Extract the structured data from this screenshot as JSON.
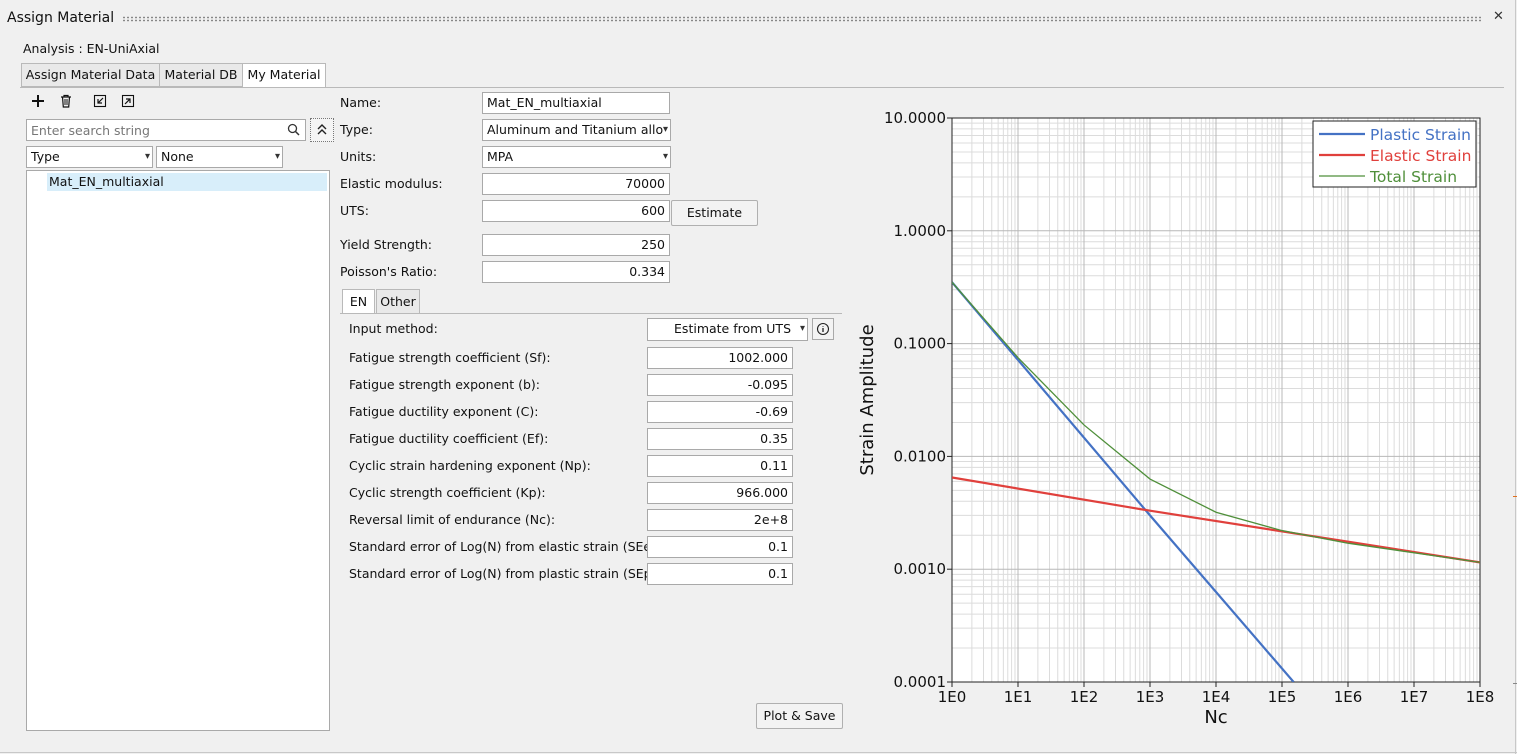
{
  "window": {
    "title": "Assign Material",
    "close_glyph": "✕"
  },
  "analysis_label": "Analysis : EN-UniAxial",
  "tabs": [
    {
      "label": "Assign Material Data",
      "active": false
    },
    {
      "label": "Material DB",
      "active": false
    },
    {
      "label": "My Material",
      "active": true
    }
  ],
  "toolbar": {
    "add_icon": "plus-icon",
    "delete_icon": "trash-icon",
    "import_icon": "import-icon",
    "export_icon": "export-icon"
  },
  "search": {
    "placeholder": "Enter search string",
    "icon": "search-icon",
    "collapse_icon": "double-chevron-up-icon"
  },
  "filters": {
    "type": "Type",
    "value": "None"
  },
  "material_list": [
    "Mat_EN_multiaxial"
  ],
  "properties": {
    "name": {
      "label": "Name:",
      "value": "Mat_EN_multiaxial"
    },
    "type": {
      "label": "Type:",
      "value": "Aluminum and Titanium allo"
    },
    "units": {
      "label": "Units:",
      "value": "MPA"
    },
    "elastic_modulus": {
      "label": "Elastic modulus:",
      "value": "70000"
    },
    "uts": {
      "label": "UTS:",
      "value": "600"
    },
    "estimate_button": "Estimate",
    "yield_strength": {
      "label": "Yield Strength:",
      "value": "250"
    },
    "poisson": {
      "label": "Poisson's Ratio:",
      "value": "0.334"
    }
  },
  "sub_tabs": [
    {
      "label": "EN",
      "active": true
    },
    {
      "label": "Other",
      "active": false
    }
  ],
  "en_params": {
    "input_method": {
      "label": "Input method:",
      "value": "Estimate from UTS",
      "info_icon": "info-icon"
    },
    "rows": [
      {
        "label": "Fatigue strength coefficient (Sf):",
        "value": "1002.000"
      },
      {
        "label": "Fatigue strength exponent (b):",
        "value": "-0.095"
      },
      {
        "label": "Fatigue ductility exponent (C):",
        "value": "-0.69"
      },
      {
        "label": "Fatigue ductility coefficient (Ef):",
        "value": "0.35"
      },
      {
        "label": "Cyclic strain hardening exponent (Np):",
        "value": "0.11"
      },
      {
        "label": "Cyclic strength coefficient (Kp):",
        "value": "966.000"
      },
      {
        "label": "Reversal limit of endurance (Nc):",
        "value": "2e+8"
      },
      {
        "label": "Standard error of Log(N) from elastic strain (SEe):",
        "value": "0.1"
      },
      {
        "label": "Standard error of Log(N) from plastic strain (SEp):",
        "value": "0.1"
      }
    ]
  },
  "plot_button": "Plot & Save",
  "chart_data": {
    "type": "line",
    "xlabel": "Nc",
    "ylabel": "Strain Amplitude",
    "xscale": "log",
    "yscale": "log",
    "xlim": [
      1,
      100000000
    ],
    "ylim": [
      0.0001,
      10
    ],
    "x_ticks": [
      "1E0",
      "1E1",
      "1E2",
      "1E3",
      "1E4",
      "1E5",
      "1E6",
      "1E7",
      "1E8"
    ],
    "y_ticks": [
      "0.0001",
      "0.0010",
      "0.0100",
      "0.1000",
      "1.0000",
      "10.0000"
    ],
    "grid": true,
    "legend_position": "top-right",
    "series": [
      {
        "name": "Plastic Strain",
        "color": "#4472c4",
        "x": [
          1,
          1000,
          150000
        ],
        "y": [
          0.35,
          0.003,
          0.0001
        ]
      },
      {
        "name": "Elastic Strain",
        "color": "#e0403c",
        "x": [
          1,
          1000,
          100000000
        ],
        "y": [
          0.0065,
          0.0033,
          0.00115
        ]
      },
      {
        "name": "Total Strain",
        "color": "#4f8f3a",
        "x": [
          1,
          10,
          100,
          1000,
          10000,
          100000,
          1000000,
          100000000
        ],
        "y": [
          0.35,
          0.075,
          0.019,
          0.0063,
          0.0032,
          0.0022,
          0.0017,
          0.00115
        ]
      }
    ]
  }
}
